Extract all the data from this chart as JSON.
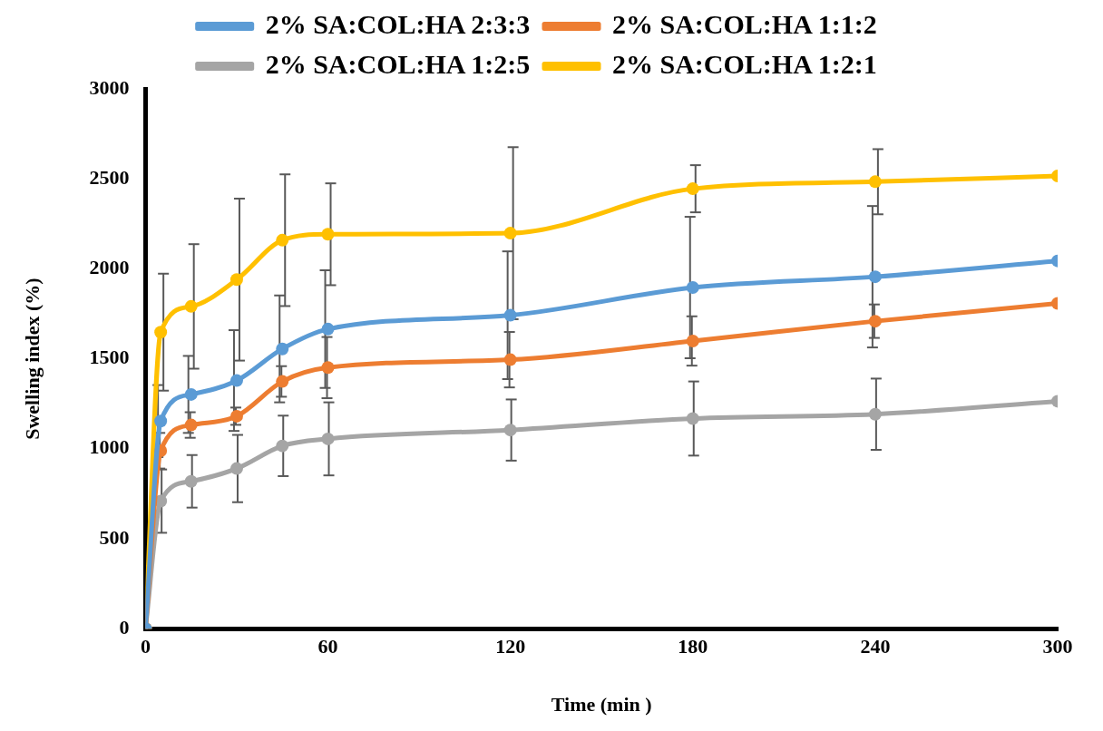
{
  "chart_data": {
    "type": "line",
    "xlabel": "Time (min )",
    "ylabel": "Swelling index (%)",
    "x": [
      0,
      5,
      15,
      30,
      45,
      60,
      120,
      180,
      240,
      300
    ],
    "xlim": [
      0,
      300
    ],
    "xticks": [
      0,
      60,
      120,
      180,
      240,
      300
    ],
    "ylim": [
      0,
      3000
    ],
    "yticks": [
      0,
      500,
      1000,
      1500,
      2000,
      2500,
      3000
    ],
    "grid": false,
    "legend": "top",
    "marker": "circle",
    "line_style": "solid",
    "series": [
      {
        "name": "2% SA:COL:HA 2:3:3",
        "color": "#5b9bd5",
        "values": [
          0,
          1154,
          1302,
          1379,
          1555,
          1665,
          1742,
          1896,
          1956,
          2044
        ],
        "errors": [
          null,
          200,
          214,
          280,
          297,
          327,
          355,
          393,
          393,
          null
        ]
      },
      {
        "name": "2% SA:COL:HA 1:1:2",
        "color": "#ed7d31",
        "values": [
          0,
          989,
          1132,
          1181,
          1374,
          1451,
          1495,
          1599,
          1709,
          1808
        ],
        "errors": [
          null,
          99,
          71,
          48,
          85,
          170,
          154,
          137,
          93,
          null
        ]
      },
      {
        "name": "2% SA:COL:HA 1:2:5",
        "color": "#a5a5a5",
        "values": [
          0,
          709,
          819,
          890,
          1016,
          1055,
          1104,
          1168,
          1192,
          1264
        ],
        "errors": [
          null,
          176,
          146,
          187,
          168,
          203,
          170,
          206,
          198,
          null
        ]
      },
      {
        "name": "2% SA:COL:HA 1:2:1",
        "color": "#ffc000",
        "values": [
          0,
          1648,
          1791,
          1940,
          2159,
          2192,
          2198,
          2445,
          2484,
          2516
        ],
        "errors": [
          null,
          325,
          346,
          450,
          366,
          283,
          478,
          131,
          181,
          null
        ]
      }
    ]
  }
}
